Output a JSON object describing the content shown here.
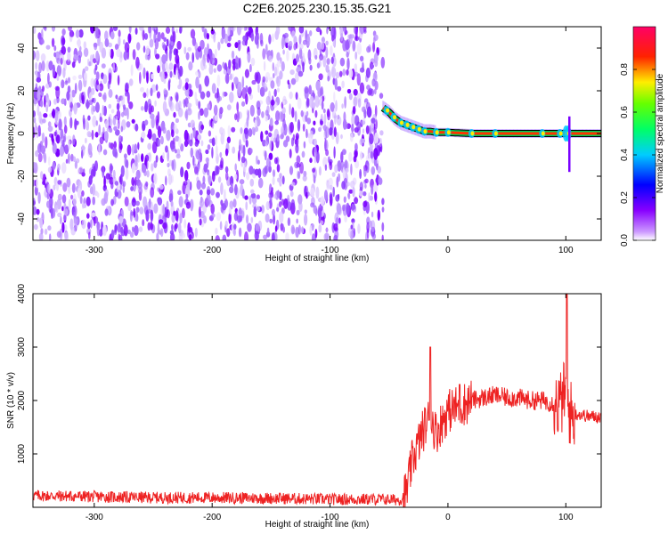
{
  "figure": {
    "title": "C2E6.2025.230.15.35.G21"
  },
  "chart_data": [
    {
      "type": "heatmap",
      "xlabel": "Height of straight line (km)",
      "ylabel": "Frequency (Hz)",
      "xlim": [
        -352,
        130
      ],
      "ylim": [
        -50,
        50
      ],
      "xticks": [
        -300,
        -200,
        -100,
        0,
        100
      ],
      "yticks": [
        -40,
        -20,
        0,
        20,
        40
      ],
      "noise_region_x": [
        -352,
        -55
      ],
      "colorbar": {
        "label": "Normalized spectral amplitude",
        "range": [
          0,
          1
        ],
        "ticks": [
          0.0,
          0.2,
          0.4,
          0.6,
          0.8
        ],
        "colormap": [
          "#ffffff",
          "#9900ff",
          "#0000ff",
          "#00ffff",
          "#00ff00",
          "#ffff00",
          "#ff0000",
          "#ff0080"
        ]
      },
      "signal_track": {
        "x": [
          -55,
          -50,
          -45,
          -40,
          -35,
          -30,
          -25,
          -20,
          -15,
          -10,
          0,
          20,
          40,
          60,
          80,
          95,
          100,
          105,
          130
        ],
        "frequency": [
          12,
          10,
          7,
          5,
          4,
          3,
          2,
          1,
          1,
          0.5,
          0.5,
          0,
          0,
          0,
          0,
          0,
          0,
          0,
          0
        ]
      },
      "grid": false
    },
    {
      "type": "line",
      "xlabel": "Height of straight line (km)",
      "ylabel": "SNR (10 * v/v)",
      "xlim": [
        -352,
        130
      ],
      "ylim": [
        0,
        4000
      ],
      "xticks": [
        -300,
        -200,
        -100,
        0,
        100
      ],
      "yticks": [
        1000,
        2000,
        3000,
        4000
      ],
      "series": [
        {
          "color": "#ee2222",
          "x": [
            -352,
            -300,
            -250,
            -200,
            -150,
            -100,
            -60,
            -40,
            -35,
            -30,
            -25,
            -20,
            -15,
            -10,
            -5,
            0,
            10,
            20,
            30,
            40,
            50,
            60,
            70,
            80,
            90,
            95,
            100,
            103,
            106,
            110,
            120,
            130
          ],
          "y": [
            220,
            200,
            180,
            180,
            170,
            150,
            150,
            140,
            300,
            900,
            1200,
            1500,
            1700,
            1400,
            1600,
            1800,
            1900,
            2000,
            2050,
            2100,
            2050,
            2050,
            2000,
            2000,
            1950,
            1900,
            2200,
            1800,
            1700,
            1750,
            1700,
            1700
          ]
        }
      ],
      "annotations_peaks": [
        {
          "x": -15,
          "y": 3000
        },
        {
          "x": 10,
          "y": 2300
        },
        {
          "x": 101,
          "y": 4000
        }
      ],
      "grid": false
    }
  ]
}
